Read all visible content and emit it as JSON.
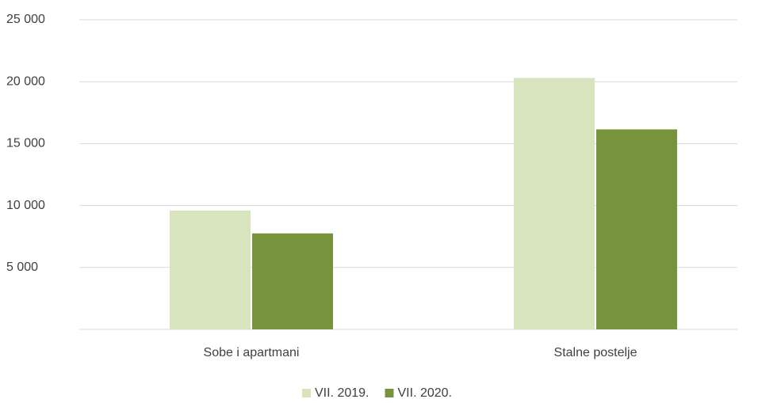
{
  "chart_data": {
    "type": "bar",
    "categories": [
      "Sobe i apartmani",
      "Stalne postelje"
    ],
    "series": [
      {
        "name": "VII. 2019.",
        "color": "#d7e4bd",
        "values": [
          9600,
          20300
        ]
      },
      {
        "name": "VII. 2020.",
        "color": "#77933c",
        "values": [
          7750,
          16150
        ]
      }
    ],
    "ylim": [
      0,
      25000
    ],
    "yticks": [
      {
        "value": 5000,
        "label": "5 000"
      },
      {
        "value": 10000,
        "label": "10 000"
      },
      {
        "value": 15000,
        "label": "15 000"
      },
      {
        "value": 20000,
        "label": "20 000"
      },
      {
        "value": 25000,
        "label": "25 000"
      }
    ],
    "grid": true,
    "legend": "bottom"
  }
}
